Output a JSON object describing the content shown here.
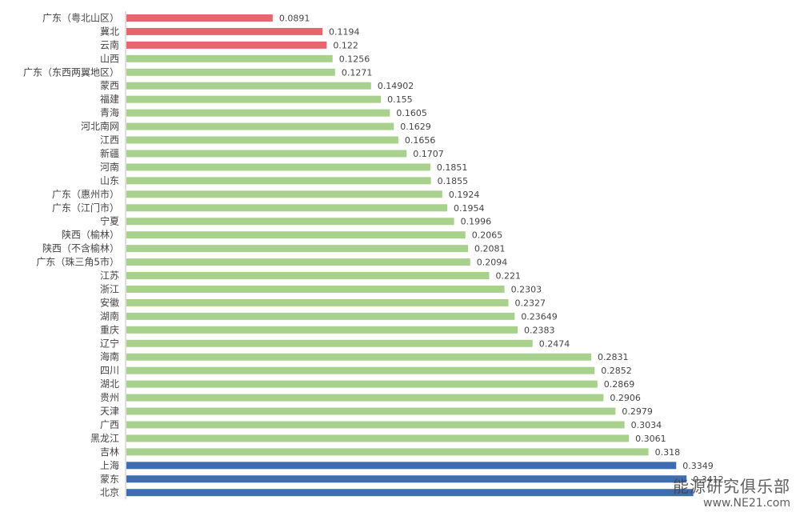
{
  "chart_data": {
    "type": "bar",
    "orientation": "horizontal",
    "categories": [
      "广东（粤北山区）",
      "冀北",
      "云南",
      "山西",
      "广东（东西两翼地区）",
      "蒙西",
      "福建",
      "青海",
      "河北南网",
      "江西",
      "新疆",
      "河南",
      "山东",
      "广东（惠州市）",
      "广东（江门市）",
      "宁夏",
      "陕西（榆林）",
      "陕西（不含榆林）",
      "广东（珠三角5市）",
      "江苏",
      "浙江",
      "安徽",
      "湖南",
      "重庆",
      "辽宁",
      "海南",
      "四川",
      "湖北",
      "贵州",
      "天津",
      "广西",
      "黑龙江",
      "吉林",
      "上海",
      "蒙东",
      "北京"
    ],
    "values": [
      0.0891,
      0.1194,
      0.122,
      0.1256,
      0.1271,
      0.14902,
      0.155,
      0.1605,
      0.1629,
      0.1656,
      0.1707,
      0.1851,
      0.1855,
      0.1924,
      0.1954,
      0.1996,
      0.2065,
      0.2081,
      0.2094,
      0.221,
      0.2303,
      0.2327,
      0.23649,
      0.2383,
      0.2474,
      0.2831,
      0.2852,
      0.2869,
      0.2906,
      0.2979,
      0.3034,
      0.3061,
      0.318,
      0.3349,
      0.3412,
      0.3453
    ],
    "labels": [
      "0.0891",
      "0.1194",
      "0.122",
      "0.1256",
      "0.1271",
      "0.14902",
      "0.155",
      "0.1605",
      "0.1629",
      "0.1656",
      "0.1707",
      "0.1851",
      "0.1855",
      "0.1924",
      "0.1954",
      "0.1996",
      "0.2065",
      "0.2081",
      "0.2094",
      "0.221",
      "0.2303",
      "0.2327",
      "0.23649",
      "0.2383",
      "0.2474",
      "0.2831",
      "0.2852",
      "0.2869",
      "0.2906",
      "0.2979",
      "0.3034",
      "0.3061",
      "0.318",
      "0.3349",
      "0.3412",
      ""
    ],
    "groups": [
      "red",
      "red",
      "red",
      "green",
      "green",
      "green",
      "green",
      "green",
      "green",
      "green",
      "green",
      "green",
      "green",
      "green",
      "green",
      "green",
      "green",
      "green",
      "green",
      "green",
      "green",
      "green",
      "green",
      "green",
      "green",
      "green",
      "green",
      "green",
      "green",
      "green",
      "green",
      "green",
      "green",
      "blue",
      "blue",
      "blue"
    ],
    "colors": {
      "red": "#e3676c",
      "green": "#a9d18e",
      "blue": "#3d6cb0"
    },
    "xlim": [
      0,
      0.345
    ],
    "grid": false,
    "legend": "none"
  },
  "watermark": {
    "line1": "能源研究俱乐部",
    "line2": "www.NE21.com"
  }
}
